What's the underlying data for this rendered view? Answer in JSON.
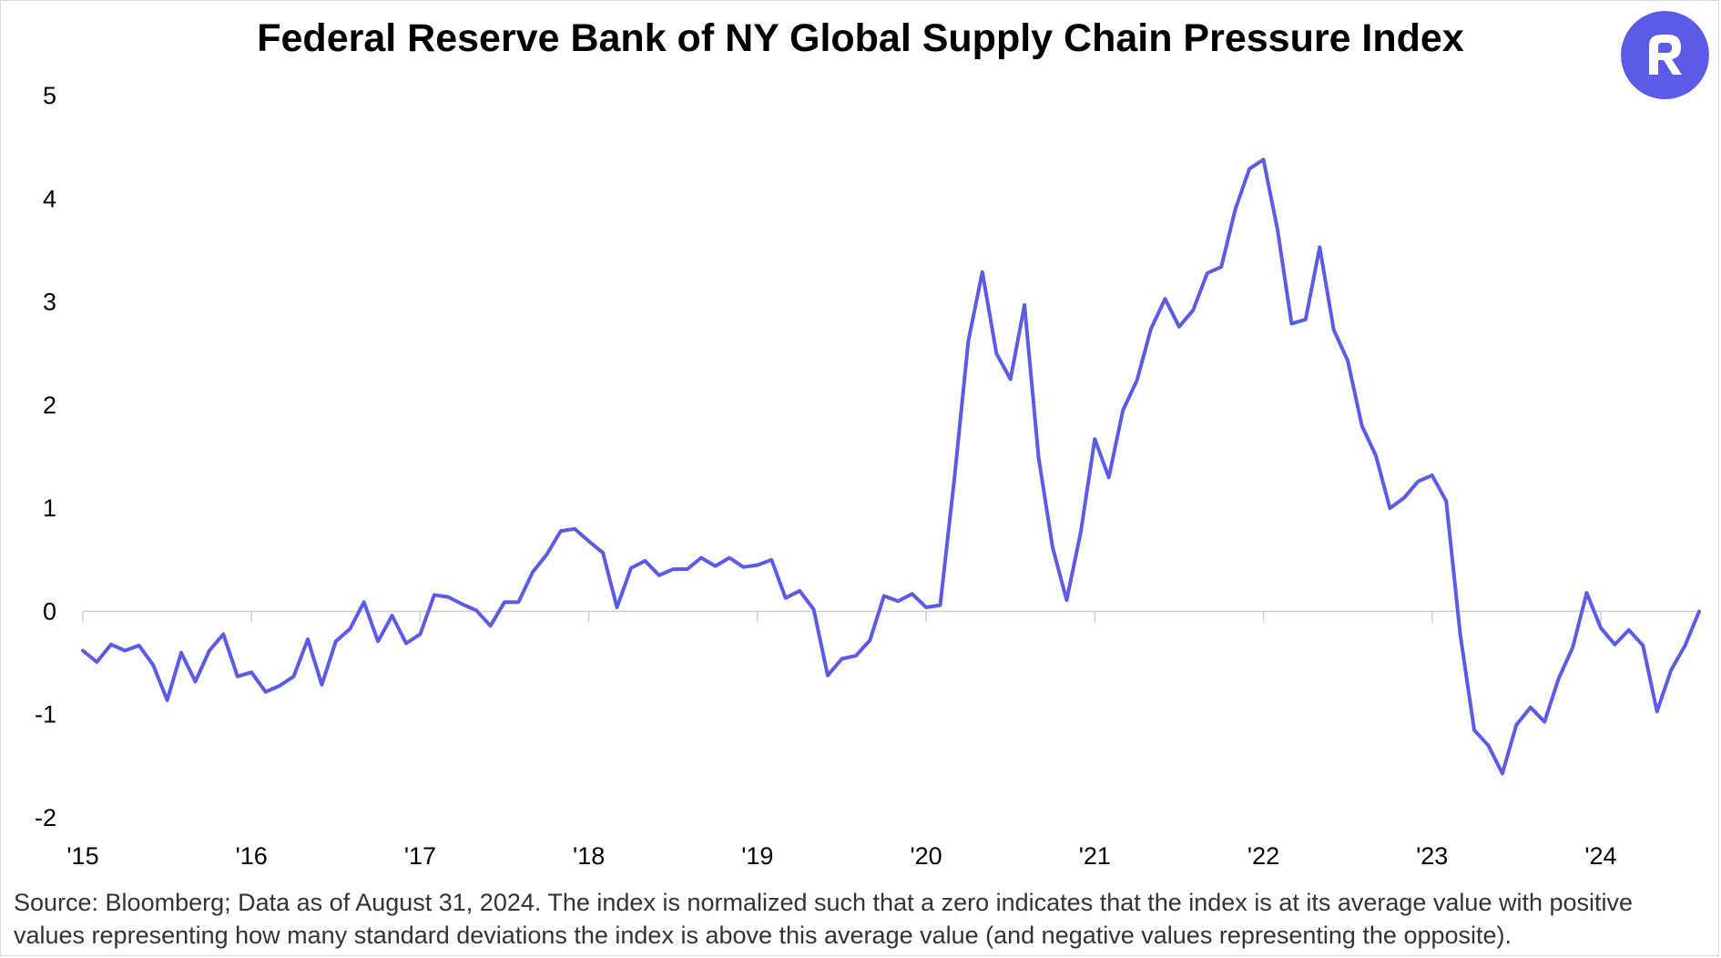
{
  "brand": {
    "accent_color": "#5b5be6",
    "logo_icon": "rally-r-logo-icon"
  },
  "title": "Federal Reserve Bank of NY Global Supply Chain Pressure Index",
  "footnote": "Source: Bloomberg; Data as of August 31, 2024. The index is normalized such that a zero indicates that the index is at its average value with positive values representing how many standard deviations the index is above this average value (and negative values representing the opposite).",
  "chart_data": {
    "type": "line",
    "title": "Federal Reserve Bank of NY Global Supply Chain Pressure Index",
    "xlabel": "",
    "ylabel": "",
    "ylim": [
      -2,
      5
    ],
    "yticks": [
      5,
      4,
      3,
      2,
      1,
      0,
      -1,
      -2
    ],
    "ytick_labels": [
      "5",
      "4",
      "3",
      "2",
      "1",
      "0",
      "-1",
      "-2"
    ],
    "xticks": [
      "2015-01",
      "2016-01",
      "2017-01",
      "2018-01",
      "2019-01",
      "2020-01",
      "2021-01",
      "2022-01",
      "2023-01",
      "2024-01"
    ],
    "xtick_labels": [
      "'15",
      "'16",
      "'17",
      "'18",
      "'19",
      "'20",
      "'21",
      "'22",
      "'23",
      "'24"
    ],
    "x_start": "2015-01",
    "x_end": "2024-08",
    "grid": false,
    "zero_line": true,
    "legend": "none",
    "series": [
      {
        "color": "#5b5be6",
        "x": [
          "2015-01",
          "2015-02",
          "2015-03",
          "2015-04",
          "2015-05",
          "2015-06",
          "2015-07",
          "2015-08",
          "2015-09",
          "2015-10",
          "2015-11",
          "2015-12",
          "2016-01",
          "2016-02",
          "2016-03",
          "2016-04",
          "2016-05",
          "2016-06",
          "2016-07",
          "2016-08",
          "2016-09",
          "2016-10",
          "2016-11",
          "2016-12",
          "2017-01",
          "2017-02",
          "2017-03",
          "2017-04",
          "2017-05",
          "2017-06",
          "2017-07",
          "2017-08",
          "2017-09",
          "2017-10",
          "2017-11",
          "2017-12",
          "2018-01",
          "2018-02",
          "2018-03",
          "2018-04",
          "2018-05",
          "2018-06",
          "2018-07",
          "2018-08",
          "2018-09",
          "2018-10",
          "2018-11",
          "2018-12",
          "2019-01",
          "2019-02",
          "2019-03",
          "2019-04",
          "2019-05",
          "2019-06",
          "2019-07",
          "2019-08",
          "2019-09",
          "2019-10",
          "2019-11",
          "2019-12",
          "2020-01",
          "2020-02",
          "2020-03",
          "2020-04",
          "2020-05",
          "2020-06",
          "2020-07",
          "2020-08",
          "2020-09",
          "2020-10",
          "2020-11",
          "2020-12",
          "2021-01",
          "2021-02",
          "2021-03",
          "2021-04",
          "2021-05",
          "2021-06",
          "2021-07",
          "2021-08",
          "2021-09",
          "2021-10",
          "2021-11",
          "2021-12",
          "2022-01",
          "2022-02",
          "2022-03",
          "2022-04",
          "2022-05",
          "2022-06",
          "2022-07",
          "2022-08",
          "2022-09",
          "2022-10",
          "2022-11",
          "2022-12",
          "2023-01",
          "2023-02",
          "2023-03",
          "2023-04",
          "2023-05",
          "2023-06",
          "2023-07",
          "2023-08",
          "2023-09",
          "2023-10",
          "2023-11",
          "2023-12",
          "2024-01",
          "2024-02",
          "2024-03",
          "2024-04",
          "2024-05",
          "2024-06",
          "2024-07",
          "2024-08"
        ],
        "values": [
          -0.38,
          -0.49,
          -0.32,
          -0.38,
          -0.33,
          -0.52,
          -0.86,
          -0.4,
          -0.68,
          -0.38,
          -0.22,
          -0.63,
          -0.59,
          -0.78,
          -0.72,
          -0.63,
          -0.27,
          -0.71,
          -0.29,
          -0.17,
          0.09,
          -0.29,
          -0.04,
          -0.31,
          -0.22,
          0.16,
          0.14,
          0.07,
          0.01,
          -0.14,
          0.09,
          0.09,
          0.38,
          0.55,
          0.78,
          0.8,
          0.68,
          0.57,
          0.04,
          0.42,
          0.49,
          0.35,
          0.41,
          0.41,
          0.52,
          0.44,
          0.52,
          0.43,
          0.45,
          0.5,
          0.13,
          0.2,
          0.02,
          -0.62,
          -0.46,
          -0.43,
          -0.28,
          0.15,
          0.1,
          0.17,
          0.04,
          0.06,
          1.28,
          2.62,
          3.29,
          2.5,
          2.25,
          2.97,
          1.49,
          0.62,
          0.11,
          0.77,
          1.67,
          1.3,
          1.95,
          2.24,
          2.74,
          3.03,
          2.76,
          2.92,
          3.28,
          3.34,
          3.9,
          4.29,
          4.38,
          3.7,
          2.79,
          2.83,
          3.53,
          2.73,
          2.43,
          1.8,
          1.51,
          1.0,
          1.1,
          1.26,
          1.32,
          1.07,
          -0.22,
          -1.15,
          -1.3,
          -1.57,
          -1.1,
          -0.93,
          -1.07,
          -0.65,
          -0.35,
          0.18,
          -0.16,
          -0.32,
          -0.18,
          -0.33,
          -0.97,
          -0.57,
          -0.33,
          0.0
        ]
      }
    ]
  }
}
